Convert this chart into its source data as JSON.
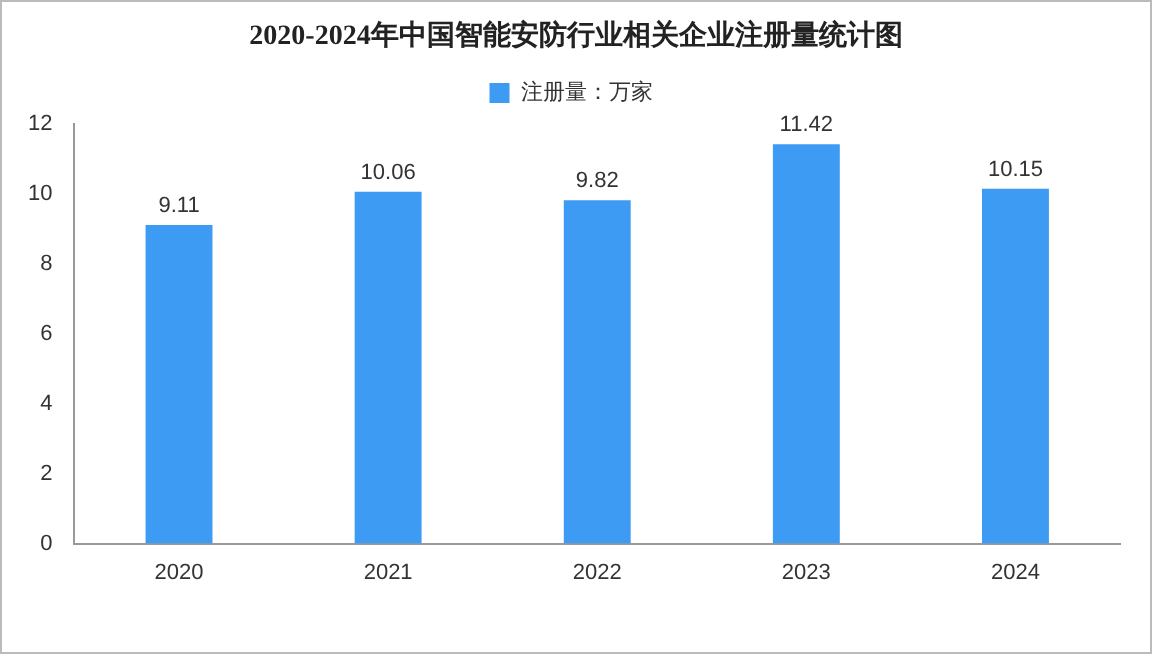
{
  "chart_data": {
    "type": "bar",
    "title": "2020-2024年中国智能安防行业相关企业注册量统计图",
    "categories": [
      "2020",
      "2021",
      "2022",
      "2023",
      "2024"
    ],
    "series": [
      {
        "name": "注册量：万家",
        "color": "#3d9bf3",
        "values": [
          9.11,
          10.06,
          9.82,
          11.42,
          10.15
        ]
      }
    ],
    "ylim": [
      0,
      12
    ],
    "yticks": [
      0,
      2,
      4,
      6,
      8,
      10,
      12
    ],
    "grid": false,
    "legend": "top",
    "data_labels": true
  }
}
